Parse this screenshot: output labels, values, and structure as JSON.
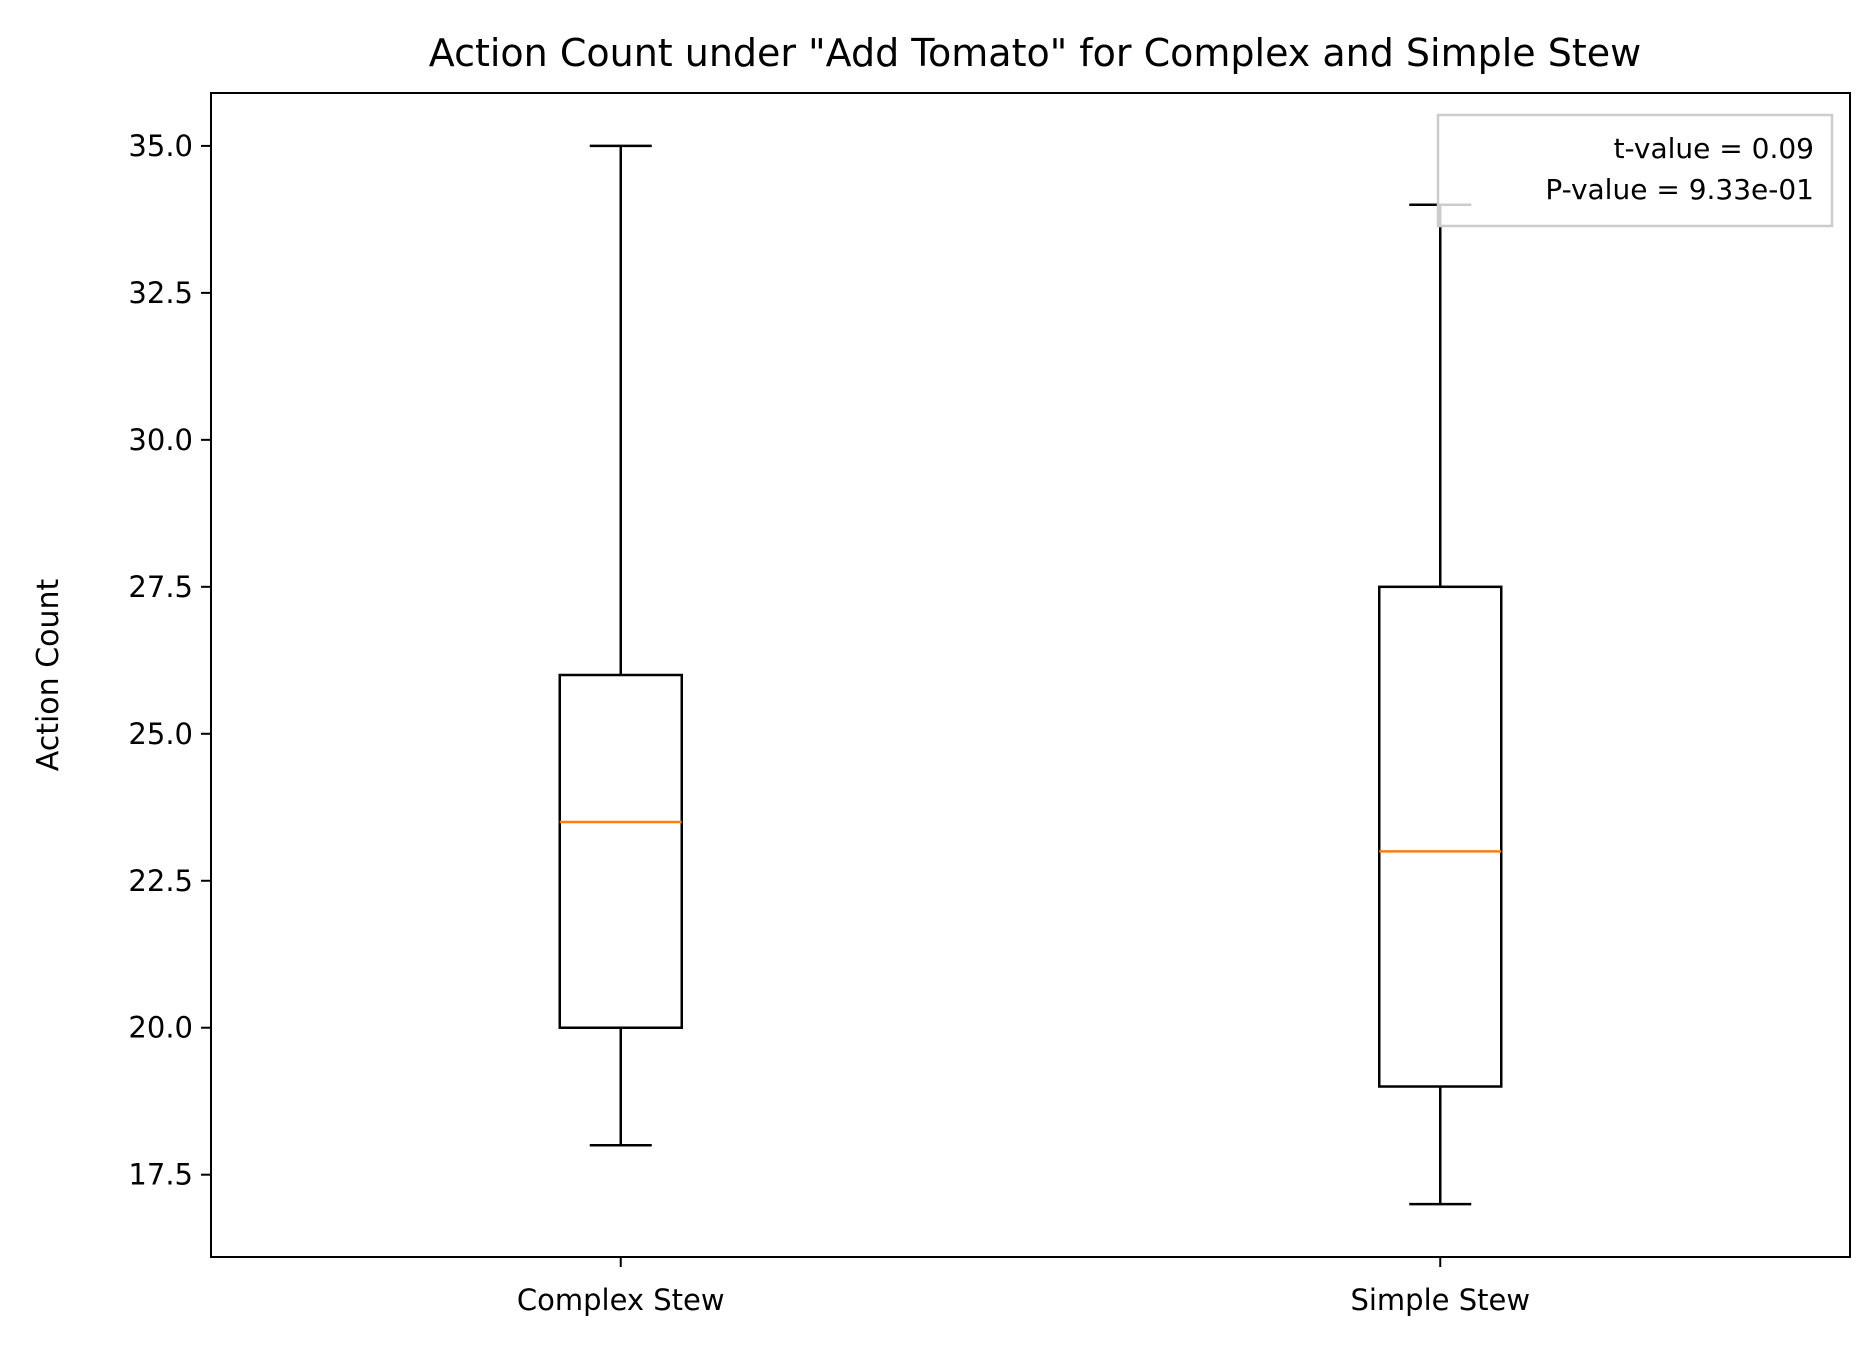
{
  "chart_data": {
    "type": "box",
    "title": "Action Count under \"Add Tomato\" for Complex and Simple Stew",
    "xlabel": "",
    "ylabel": "Action Count",
    "ylim": [
      16.1,
      35.9
    ],
    "yticks": [
      17.5,
      20.0,
      22.5,
      25.0,
      27.5,
      30.0,
      32.5,
      35.0
    ],
    "ytick_labels": [
      "17.5",
      "20.0",
      "22.5",
      "25.0",
      "27.5",
      "30.0",
      "32.5",
      "35.0"
    ],
    "categories": [
      "Complex Stew",
      "Simple Stew"
    ],
    "boxes": [
      {
        "category": "Complex Stew",
        "whisker_low": 18.0,
        "q1": 20.0,
        "median": 23.5,
        "q3": 26.0,
        "whisker_high": 35.0
      },
      {
        "category": "Simple Stew",
        "whisker_low": 17.0,
        "q1": 19.0,
        "median": 23.0,
        "q3": 27.5,
        "whisker_high": 34.0
      }
    ],
    "grid": false,
    "annotation": {
      "lines": [
        "t-value = 0.09",
        "P-value = 9.33e-01"
      ],
      "placement": "top-right"
    },
    "colors": {
      "box": "#000000",
      "median": "#ff7f0e",
      "annotation_border": "#cccccc"
    }
  }
}
